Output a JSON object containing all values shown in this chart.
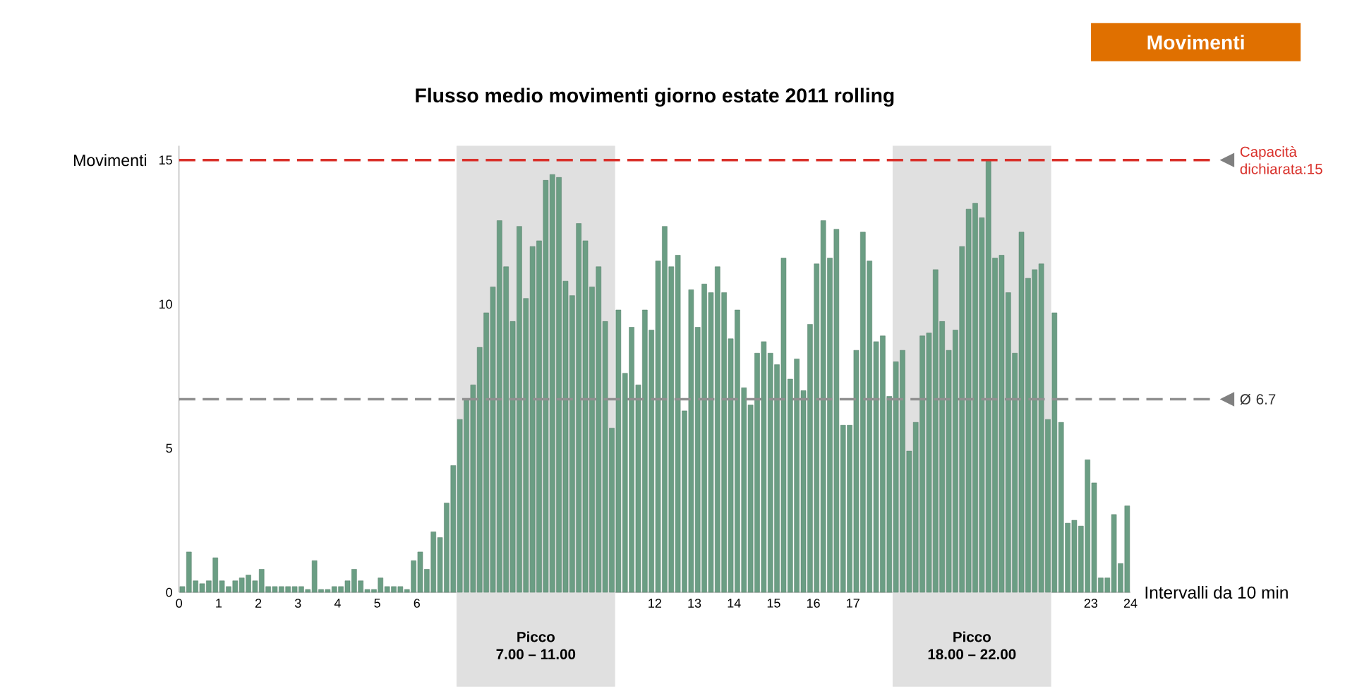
{
  "chart_data": {
    "type": "bar",
    "title": "Flusso medio movimenti giorno estate 2011 rolling",
    "ylabel": "Movimenti",
    "xlabel": "Intervalli da 10 min",
    "annotations": [
      "Movimenti"
    ],
    "x": [
      0.083,
      0.25,
      0.417,
      0.583,
      0.75,
      0.917,
      1.083,
      1.25,
      1.417,
      1.583,
      1.75,
      1.917,
      2.083,
      2.25,
      2.417,
      2.583,
      2.75,
      2.917,
      3.083,
      3.25,
      3.417,
      3.583,
      3.75,
      3.917,
      4.083,
      4.25,
      4.417,
      4.583,
      4.75,
      4.917,
      5.083,
      5.25,
      5.417,
      5.583,
      5.75,
      5.917,
      6.083,
      6.25,
      6.417,
      6.583,
      6.75,
      6.917,
      7.083,
      7.25,
      7.417,
      7.583,
      7.75,
      7.917,
      8.083,
      8.25,
      8.417,
      8.583,
      8.75,
      8.917,
      9.083,
      9.25,
      9.417,
      9.583,
      9.75,
      9.917,
      10.083,
      10.25,
      10.417,
      10.583,
      10.75,
      10.917,
      11.083,
      11.25,
      11.417,
      11.583,
      11.75,
      11.917,
      12.083,
      12.25,
      12.417,
      12.583,
      12.75,
      12.917,
      13.083,
      13.25,
      13.417,
      13.583,
      13.75,
      13.917,
      14.083,
      14.25,
      14.417,
      14.583,
      14.75,
      14.917,
      15.083,
      15.25,
      15.417,
      15.583,
      15.75,
      15.917,
      16.083,
      16.25,
      16.417,
      16.583,
      16.75,
      16.917,
      17.083,
      17.25,
      17.417,
      17.583,
      17.75,
      17.917,
      18.083,
      18.25,
      18.417,
      18.583,
      18.75,
      18.917,
      19.083,
      19.25,
      19.417,
      19.583,
      19.75,
      19.917,
      20.083,
      20.25,
      20.417,
      20.583,
      20.75,
      20.917,
      21.083,
      21.25,
      21.417,
      21.583,
      21.75,
      21.917,
      22.083,
      22.25,
      22.417,
      22.583,
      22.75,
      22.917,
      23.083,
      23.25,
      23.417,
      23.583,
      23.75,
      23.917
    ],
    "values": [
      0.2,
      1.4,
      0.4,
      0.3,
      0.4,
      1.2,
      0.4,
      0.2,
      0.4,
      0.5,
      0.6,
      0.4,
      0.8,
      0.2,
      0.2,
      0.2,
      0.2,
      0.2,
      0.2,
      0.1,
      1.1,
      0.1,
      0.1,
      0.2,
      0.2,
      0.4,
      0.8,
      0.4,
      0.1,
      0.1,
      0.5,
      0.2,
      0.2,
      0.2,
      0.1,
      1.1,
      1.4,
      0.8,
      2.1,
      1.9,
      3.1,
      4.4,
      6.0,
      6.7,
      7.2,
      8.5,
      9.7,
      10.6,
      12.9,
      11.3,
      9.4,
      12.7,
      10.2,
      12.0,
      12.2,
      14.3,
      14.5,
      14.4,
      10.8,
      10.3,
      12.8,
      12.2,
      10.6,
      11.3,
      9.4,
      5.7,
      9.8,
      7.6,
      9.2,
      7.2,
      9.8,
      9.1,
      11.5,
      12.7,
      11.3,
      11.7,
      6.3,
      10.5,
      9.2,
      10.7,
      10.4,
      11.3,
      10.4,
      8.8,
      9.8,
      7.1,
      6.5,
      8.3,
      8.7,
      8.3,
      7.9,
      11.6,
      7.4,
      8.1,
      7.0,
      9.3,
      11.4,
      12.9,
      11.6,
      12.6,
      5.8,
      5.8,
      8.4,
      12.5,
      11.5,
      8.7,
      8.9,
      6.8,
      8.0,
      8.4,
      4.9,
      5.9,
      8.9,
      9.0,
      11.2,
      9.4,
      8.4,
      9.1,
      12.0,
      13.3,
      13.5,
      13.0,
      15.0,
      11.6,
      11.7,
      10.4,
      8.3,
      12.5,
      10.9,
      11.2,
      11.4,
      6.0,
      9.7,
      5.9,
      2.4,
      2.5,
      2.3,
      4.6,
      3.8,
      0.5,
      0.5,
      2.7,
      1.0,
      3.0
    ],
    "color": "#6b9e84",
    "xlim": [
      0,
      24
    ],
    "xticks": [
      0,
      1,
      2,
      3,
      4,
      5,
      6,
      12,
      13,
      14,
      15,
      16,
      17,
      23,
      24
    ],
    "ylim": [
      0,
      15.5
    ],
    "yticks": [
      0,
      5,
      10,
      15
    ],
    "ref_lines": [
      {
        "axis": "y",
        "value": 15,
        "label": "Capacità dichiarata:15",
        "color": "#d9302a",
        "line_style": "dashed"
      },
      {
        "axis": "y",
        "value": 6.7,
        "label": "Ø 6.7",
        "color": "#909090",
        "line_style": "dashed"
      }
    ],
    "bands": [
      {
        "axis": "x",
        "from": 7,
        "to": 11,
        "label": "Picco 7.00 – 11.00",
        "color": "#e0e0e0"
      },
      {
        "axis": "x",
        "from": 18,
        "to": 22,
        "label": "Picco 18.00 – 22.00",
        "color": "#e0e0e0"
      }
    ]
  }
}
